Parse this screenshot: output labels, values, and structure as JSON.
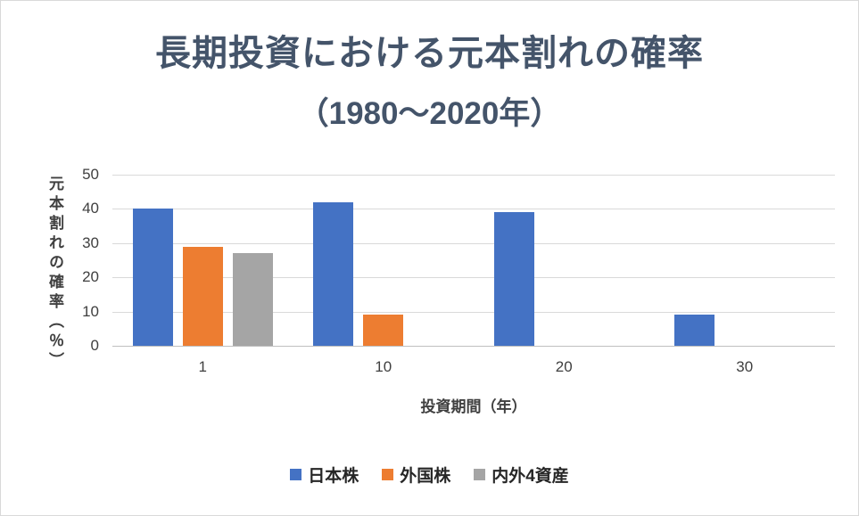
{
  "chart_data": {
    "type": "bar",
    "title_line1": "長期投資における元本割れの確率",
    "title_line2": "（1980〜2020年）",
    "categories": [
      "1",
      "10",
      "20",
      "30"
    ],
    "series": [
      {
        "name": "日本株",
        "color": "#4472c4",
        "values": [
          40,
          42,
          39,
          9
        ]
      },
      {
        "name": "外国株",
        "color": "#ed7d31",
        "values": [
          29,
          9,
          0,
          0
        ]
      },
      {
        "name": "内外4資産",
        "color": "#a5a5a5",
        "values": [
          27,
          0,
          0,
          0
        ]
      }
    ],
    "xlabel": "投資期間（年）",
    "ylabel": "元本割れの確率（％）",
    "ylim": [
      0,
      50
    ],
    "yticks": [
      0,
      10,
      20,
      30,
      40,
      50
    ],
    "grid": true,
    "legend_position": "bottom"
  },
  "colors": {
    "title": "#44546a",
    "axis_text": "#404040",
    "gridline": "#d9d9d9",
    "axis_line": "#bfbfbf",
    "background": "#ffffff"
  }
}
